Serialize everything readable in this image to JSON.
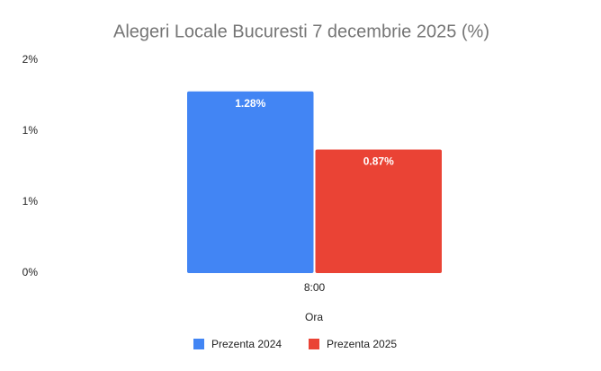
{
  "chart_data": {
    "type": "bar",
    "title": "Alegeri Locale Bucuresti 7 decembrie 2025 (%)",
    "categories": [
      "8:00"
    ],
    "series": [
      {
        "name": "Prezenta 2024",
        "color": "#4285f4",
        "values": [
          1.28
        ],
        "value_labels": [
          "1.28%"
        ]
      },
      {
        "name": "Prezenta 2025",
        "color": "#ea4335",
        "values": [
          0.87
        ],
        "value_labels": [
          "0.87%"
        ]
      }
    ],
    "x_label": "Ora",
    "ylim": [
      0,
      1.5
    ],
    "yticks": [
      {
        "value": 0,
        "label": "0%"
      },
      {
        "value": 0.5,
        "label": "1%"
      },
      {
        "value": 1,
        "label": "1%"
      },
      {
        "value": 1.5,
        "label": "2%"
      }
    ],
    "grid": false,
    "legend": "bottom"
  }
}
